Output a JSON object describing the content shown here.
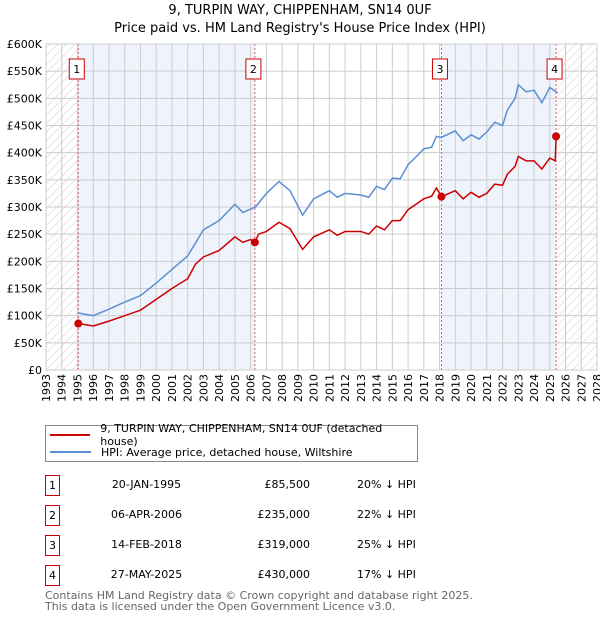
{
  "title": "9, TURPIN WAY, CHIPPENHAM, SN14 0UF",
  "subtitle": "Price paid vs. HM Land Registry's House Price Index (HPI)",
  "chart_data": {
    "type": "line",
    "title": "9, TURPIN WAY, CHIPPENHAM, SN14 0UF — Price paid vs. HM Land Registry's House Price Index (HPI)",
    "xlim": [
      1993,
      2028
    ],
    "ylim": [
      0,
      600000
    ],
    "x_ticks": [
      "1993",
      "1994",
      "1995",
      "1996",
      "1997",
      "1998",
      "1999",
      "2000",
      "2001",
      "2002",
      "2003",
      "2004",
      "2005",
      "2006",
      "2007",
      "2008",
      "2009",
      "2010",
      "2011",
      "2012",
      "2013",
      "2014",
      "2015",
      "2016",
      "2017",
      "2018",
      "2019",
      "2020",
      "2021",
      "2022",
      "2023",
      "2024",
      "2025",
      "2026",
      "2027",
      "2028"
    ],
    "y_ticks": [
      {
        "v": 0,
        "label": "£0"
      },
      {
        "v": 50000,
        "label": "£50K"
      },
      {
        "v": 100000,
        "label": "£100K"
      },
      {
        "v": 150000,
        "label": "£150K"
      },
      {
        "v": 200000,
        "label": "£200K"
      },
      {
        "v": 250000,
        "label": "£250K"
      },
      {
        "v": 300000,
        "label": "£300K"
      },
      {
        "v": 350000,
        "label": "£350K"
      },
      {
        "v": 400000,
        "label": "£400K"
      },
      {
        "v": 450000,
        "label": "£450K"
      },
      {
        "v": 500000,
        "label": "£500K"
      },
      {
        "v": 550000,
        "label": "£550K"
      },
      {
        "v": 600000,
        "label": "£600K"
      }
    ],
    "grid": true,
    "hatched_ranges": [
      [
        1993,
        1995.05
      ],
      [
        2025.5,
        2028
      ]
    ],
    "shaded_ranges": [
      [
        1995.05,
        2006.27
      ],
      [
        2018.12,
        2025.4
      ]
    ],
    "series": [
      {
        "name": "9, TURPIN WAY, CHIPPENHAM, SN14 0UF (detached house)",
        "color": "#cc0000",
        "x": [
          1995.05,
          1996,
          1997,
          1998,
          1999,
          2000,
          2001,
          2002,
          2002.5,
          2003,
          2004,
          2005,
          2005.5,
          2006,
          2006.27,
          2006.5,
          2007,
          2007.8,
          2008.5,
          2009.3,
          2010,
          2011,
          2011.5,
          2012,
          2013,
          2013.5,
          2014,
          2014.5,
          2015,
          2015.5,
          2016,
          2016.5,
          2017,
          2017.5,
          2017.8,
          2018.12,
          2019,
          2019.5,
          2020,
          2020.5,
          2021,
          2021.5,
          2022,
          2022.3,
          2022.8,
          2023,
          2023.5,
          2024,
          2024.5,
          2025,
          2025.35,
          2025.4,
          2025.5
        ],
        "y": [
          85500,
          81000,
          90000,
          100000,
          110000,
          130000,
          150000,
          168000,
          195000,
          208000,
          220000,
          245000,
          235000,
          240000,
          235000,
          250000,
          255000,
          272000,
          260000,
          222000,
          245000,
          258000,
          248000,
          255000,
          255000,
          250000,
          265000,
          258000,
          275000,
          275000,
          295000,
          305000,
          315000,
          320000,
          335000,
          319000,
          330000,
          315000,
          327000,
          318000,
          325000,
          342000,
          340000,
          360000,
          375000,
          393000,
          385000,
          385000,
          370000,
          390000,
          385000,
          430000,
          430000
        ]
      },
      {
        "name": "HPI: Average price, detached house, Wiltshire",
        "color": "#5b8fd4",
        "x": [
          1995.05,
          1996,
          1997,
          1998,
          1999,
          2000,
          2001,
          2002,
          2003,
          2004,
          2005,
          2005.5,
          2006.3,
          2007,
          2007.8,
          2008.5,
          2009.3,
          2010,
          2011,
          2011.5,
          2012,
          2013,
          2013.5,
          2014,
          2014.5,
          2015,
          2015.5,
          2016,
          2016.5,
          2017,
          2017.5,
          2017.8,
          2018.1,
          2019,
          2019.5,
          2020,
          2020.5,
          2021,
          2021.5,
          2022,
          2022.3,
          2022.8,
          2023,
          2023.5,
          2024,
          2024.5,
          2025,
          2025.5
        ],
        "y": [
          105000,
          100000,
          112000,
          125000,
          137000,
          160000,
          185000,
          210000,
          258000,
          275000,
          305000,
          290000,
          300000,
          325000,
          347000,
          330000,
          285000,
          315000,
          330000,
          318000,
          325000,
          322000,
          318000,
          338000,
          332000,
          353000,
          352000,
          378000,
          392000,
          407000,
          410000,
          430000,
          428000,
          440000,
          422000,
          433000,
          425000,
          438000,
          456000,
          450000,
          478000,
          500000,
          525000,
          512000,
          515000,
          492000,
          520000,
          510000
        ]
      }
    ],
    "sales": [
      {
        "n": "1",
        "x": 1995.05,
        "y": 85500
      },
      {
        "n": "2",
        "x": 2006.27,
        "y": 235000
      },
      {
        "n": "3",
        "x": 2018.12,
        "y": 319000
      },
      {
        "n": "4",
        "x": 2025.4,
        "y": 430000
      }
    ]
  },
  "legend": [
    {
      "label": "9, TURPIN WAY, CHIPPENHAM, SN14 0UF (detached house)",
      "color": "#cc0000"
    },
    {
      "label": "HPI: Average price, detached house, Wiltshire",
      "color": "#5b8fd4"
    }
  ],
  "transactions": [
    {
      "n": "1",
      "date": "20-JAN-1995",
      "price": "£85,500",
      "hpi": "20% ↓ HPI"
    },
    {
      "n": "2",
      "date": "06-APR-2006",
      "price": "£235,000",
      "hpi": "22% ↓ HPI"
    },
    {
      "n": "3",
      "date": "14-FEB-2018",
      "price": "£319,000",
      "hpi": "25% ↓ HPI"
    },
    {
      "n": "4",
      "date": "27-MAY-2025",
      "price": "£430,000",
      "hpi": "17% ↓ HPI"
    }
  ],
  "footer": [
    "Contains HM Land Registry data © Crown copyright and database right 2025.",
    "This data is licensed under the Open Government Licence v3.0."
  ]
}
